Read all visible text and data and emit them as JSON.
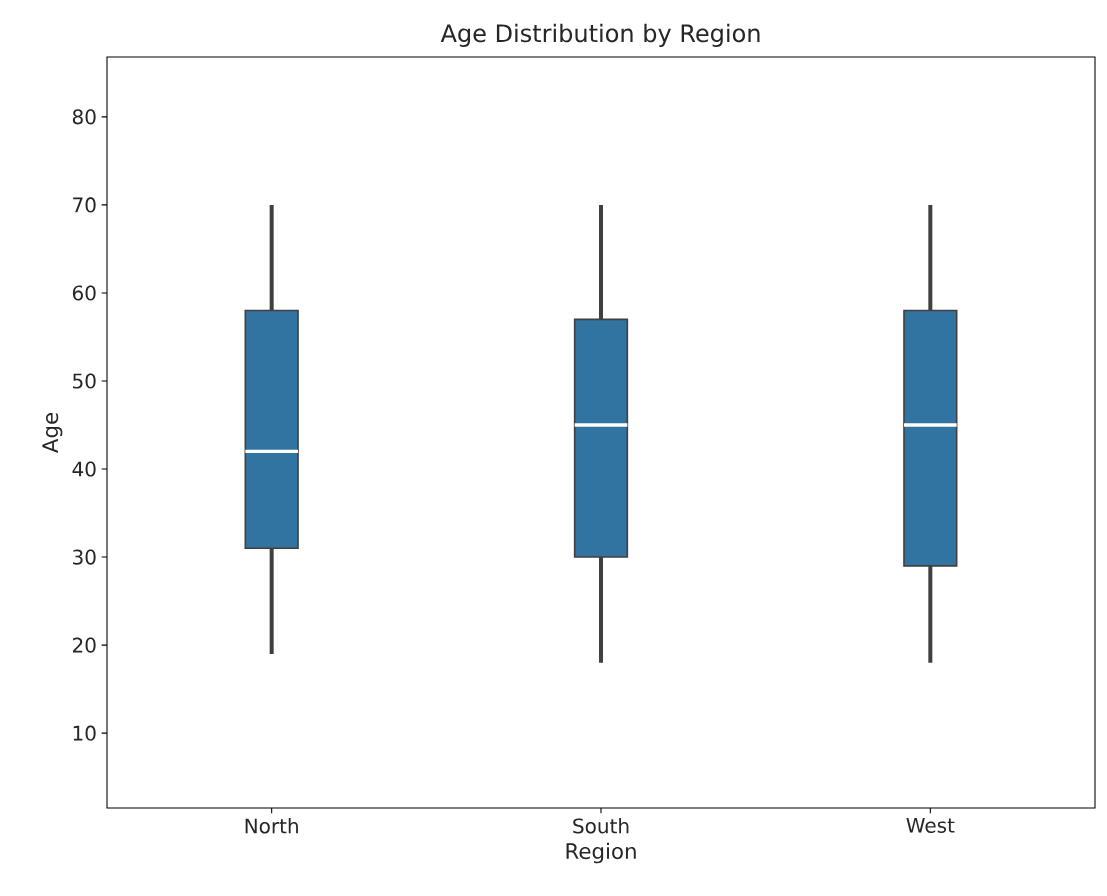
{
  "chart_data": {
    "type": "box",
    "title": "Age Distribution by Region",
    "xlabel": "Region",
    "ylabel": "Age",
    "categories": [
      "North",
      "South",
      "West"
    ],
    "ylim": [
      1.5,
      86.8
    ],
    "yticks": [
      10,
      20,
      30,
      40,
      50,
      60,
      70,
      80
    ],
    "series": [
      {
        "color": "#3274a1",
        "boxes": [
          {
            "low": 19,
            "q1": 31,
            "median": 42,
            "q3": 58,
            "high": 70
          },
          {
            "low": 18,
            "q1": 30,
            "median": 45,
            "q3": 57,
            "high": 70
          },
          {
            "low": 18,
            "q1": 29,
            "median": 45,
            "q3": 58,
            "high": 70
          }
        ]
      }
    ]
  }
}
